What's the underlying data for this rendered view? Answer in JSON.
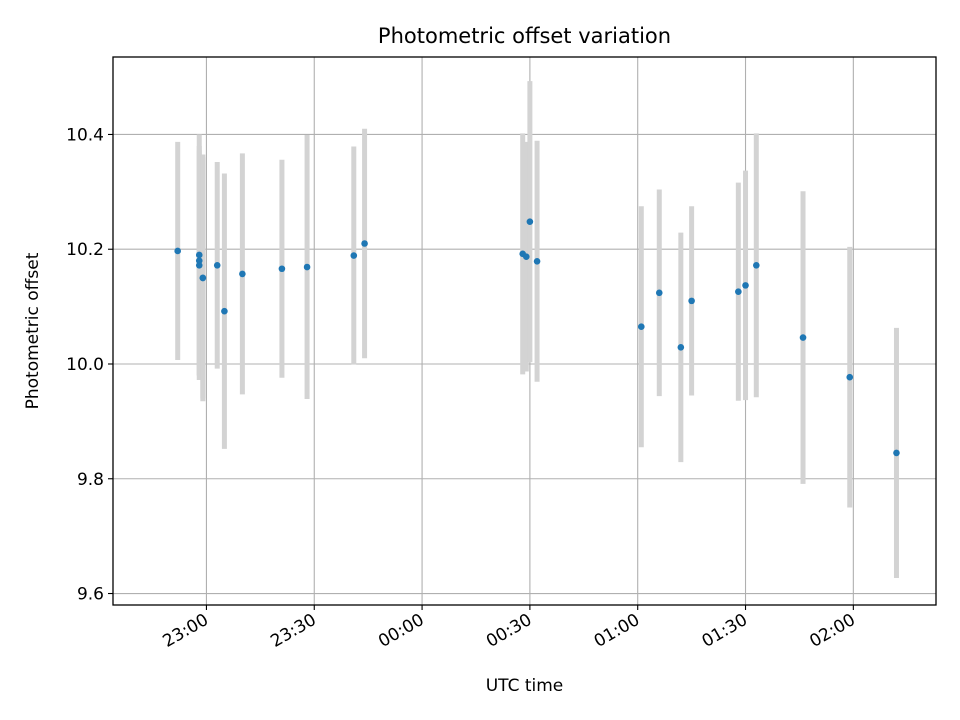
{
  "chart_data": {
    "type": "scatter",
    "title": "Photometric offset variation",
    "xlabel": "UTC time",
    "ylabel": "Photometric offset",
    "x_ticks": [
      "23:00",
      "23:30",
      "00:00",
      "00:30",
      "01:00",
      "01:30",
      "02:00"
    ],
    "x_tick_minutes": [
      1380,
      1410,
      1440,
      1470,
      1500,
      1530,
      1560
    ],
    "xlim_minutes": [
      1354,
      1583
    ],
    "y_ticks": [
      "9.6",
      "9.8",
      "10.0",
      "10.2",
      "10.4"
    ],
    "y_tick_values": [
      9.6,
      9.8,
      10.0,
      10.2,
      10.4
    ],
    "ylim": [
      9.58,
      10.535
    ],
    "grid": true,
    "marker_color": "#1f77b4",
    "errorbar_color": "#d3d3d3",
    "points": [
      {
        "time": "22:52",
        "y": 10.197,
        "err": 0.19
      },
      {
        "time": "22:58",
        "y": 10.19,
        "err": 0.21
      },
      {
        "time": "22:58",
        "y": 10.18,
        "err": 0.2
      },
      {
        "time": "22:58",
        "y": 10.172,
        "err": 0.2
      },
      {
        "time": "22:59",
        "y": 10.15,
        "err": 0.21
      },
      {
        "time": "22:59",
        "y": 10.15,
        "err": 0.215
      },
      {
        "time": "23:03",
        "y": 10.172,
        "err": 0.18
      },
      {
        "time": "23:05",
        "y": 10.092,
        "err": 0.24
      },
      {
        "time": "23:10",
        "y": 10.157,
        "err": 0.21
      },
      {
        "time": "23:21",
        "y": 10.166,
        "err": 0.19
      },
      {
        "time": "23:28",
        "y": 10.169,
        "err": 0.23
      },
      {
        "time": "23:41",
        "y": 10.189,
        "err": 0.19
      },
      {
        "time": "23:44",
        "y": 10.21,
        "err": 0.2
      },
      {
        "time": "00:28",
        "y": 10.192,
        "err": 0.21
      },
      {
        "time": "00:29",
        "y": 10.187,
        "err": 0.2
      },
      {
        "time": "00:30",
        "y": 10.248,
        "err": 0.245
      },
      {
        "time": "00:32",
        "y": 10.179,
        "err": 0.21
      },
      {
        "time": "01:01",
        "y": 10.065,
        "err": 0.21
      },
      {
        "time": "01:06",
        "y": 10.124,
        "err": 0.18
      },
      {
        "time": "01:12",
        "y": 10.029,
        "err": 0.2
      },
      {
        "time": "01:15",
        "y": 10.11,
        "err": 0.165
      },
      {
        "time": "01:28",
        "y": 10.126,
        "err": 0.19
      },
      {
        "time": "01:30",
        "y": 10.137,
        "err": 0.2
      },
      {
        "time": "01:33",
        "y": 10.172,
        "err": 0.23
      },
      {
        "time": "01:46",
        "y": 10.046,
        "err": 0.255
      },
      {
        "time": "01:59",
        "y": 9.977,
        "err": 0.227
      },
      {
        "time": "02:12",
        "y": 9.845,
        "err": 0.218
      }
    ]
  }
}
